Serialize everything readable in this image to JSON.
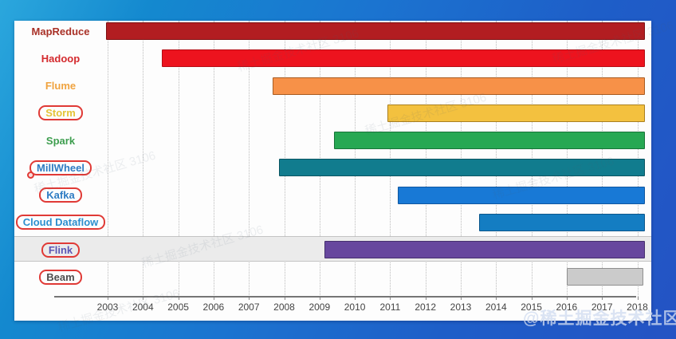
{
  "colors": {
    "background_top": "#2BA7DD",
    "background_mid": "#1B74D0",
    "background_bottom": "#2453C4",
    "panel": "#FDFDFD",
    "gridline": "#BCBCBC",
    "axis_line": "#757575",
    "tick_label": "#444444",
    "band_fill": "#EBEBEB",
    "band_border": "#C4C4C4",
    "annotation_red": "#E03A36"
  },
  "watermarks": {
    "bottom_right": "@稀土掘金技术社区",
    "faint": "稀土掘金技术社区 3106"
  },
  "chart_data": {
    "type": "bar",
    "subtype": "horizontal-timeline-gantt",
    "title": "",
    "xlabel": "",
    "ylabel": "",
    "grid": "vertical-dotted",
    "legend": "none",
    "x_ticks": [
      2003,
      2004,
      2005,
      2006,
      2007,
      2008,
      2009,
      2010,
      2011,
      2012,
      2013,
      2014,
      2015,
      2016,
      2017,
      2018
    ],
    "x_range": [
      2002.6,
      2018.45
    ],
    "rows": [
      {
        "label": "MapReduce",
        "label_color": "#A93127",
        "annotated": false,
        "dot": false,
        "row_band": false,
        "start": 2002.95,
        "end": 2018.21,
        "fill": "#B21D21",
        "border": "#7E1012"
      },
      {
        "label": "Hadoop",
        "label_color": "#D42A2E",
        "annotated": false,
        "dot": false,
        "row_band": false,
        "start": 2004.53,
        "end": 2018.21,
        "fill": "#ED131E",
        "border": "#B50D14"
      },
      {
        "label": "Flume",
        "label_color": "#F0A33F",
        "annotated": false,
        "dot": false,
        "row_band": false,
        "start": 2007.67,
        "end": 2018.21,
        "fill": "#F79148",
        "border": "#A85C22"
      },
      {
        "label": "Storm",
        "label_color": "#E4C438",
        "annotated": true,
        "dot": false,
        "row_band": false,
        "start": 2010.92,
        "end": 2018.21,
        "fill": "#F3C13F",
        "border": "#AA7F1F"
      },
      {
        "label": "Spark",
        "label_color": "#3E9E4F",
        "annotated": false,
        "dot": false,
        "row_band": false,
        "start": 2009.41,
        "end": 2018.21,
        "fill": "#27A853",
        "border": "#187338"
      },
      {
        "label": "MillWheel",
        "label_color": "#2E7CC3",
        "annotated": true,
        "dot": true,
        "row_band": false,
        "start": 2007.85,
        "end": 2018.21,
        "fill": "#117C8E",
        "border": "#0A5562"
      },
      {
        "label": "Kafka",
        "label_color": "#2E7CC3",
        "annotated": true,
        "dot": false,
        "row_band": false,
        "start": 2011.22,
        "end": 2018.21,
        "fill": "#1879D6",
        "border": "#0F57A0"
      },
      {
        "label": "Cloud Dataflow",
        "label_color": "#2C8FCE",
        "annotated": true,
        "dot": false,
        "row_band": false,
        "start": 2013.52,
        "end": 2018.21,
        "fill": "#147DC2",
        "border": "#0D578C"
      },
      {
        "label": "Flink",
        "label_color": "#5B55B4",
        "annotated": true,
        "dot": false,
        "row_band": true,
        "start": 2009.14,
        "end": 2018.21,
        "fill": "#67479E",
        "border": "#46306E"
      },
      {
        "label": "Beam",
        "label_color": "#4E4E4E",
        "annotated": true,
        "dot": false,
        "row_band": false,
        "start": 2016.0,
        "end": 2018.17,
        "fill": "#CBCBCB",
        "border": "#8F8F8F"
      }
    ]
  }
}
